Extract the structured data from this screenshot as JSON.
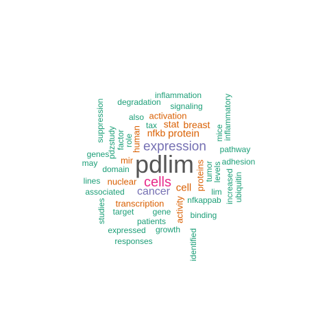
{
  "palette": {
    "teal": "#1b9e77",
    "orange": "#d95f02",
    "purple": "#7570b3",
    "magenta": "#e7298a",
    "gray": "#555555"
  },
  "words": [
    {
      "text": "pdlim",
      "color": "gray"
    },
    {
      "text": "expression",
      "color": "purple"
    },
    {
      "text": "cells",
      "color": "magenta"
    },
    {
      "text": "cancer",
      "color": "purple"
    },
    {
      "text": "protein",
      "color": "orange"
    },
    {
      "text": "cell",
      "color": "orange"
    },
    {
      "text": "nfkb",
      "color": "orange"
    },
    {
      "text": "stat",
      "color": "orange"
    },
    {
      "text": "breast",
      "color": "orange"
    },
    {
      "text": "activation",
      "color": "orange"
    },
    {
      "text": "human",
      "color": "orange"
    },
    {
      "text": "mir",
      "color": "orange"
    },
    {
      "text": "nuclear",
      "color": "orange"
    },
    {
      "text": "transcription",
      "color": "orange"
    },
    {
      "text": "activity",
      "color": "orange"
    },
    {
      "text": "proteins",
      "color": "orange"
    },
    {
      "text": "tumor",
      "color": "teal"
    },
    {
      "text": "inflammation",
      "color": "teal"
    },
    {
      "text": "degradation",
      "color": "teal"
    },
    {
      "text": "signaling",
      "color": "teal"
    },
    {
      "text": "inflammatory",
      "color": "teal"
    },
    {
      "text": "mice",
      "color": "teal"
    },
    {
      "text": "suppression",
      "color": "teal"
    },
    {
      "text": "also",
      "color": "teal"
    },
    {
      "text": "tax",
      "color": "teal"
    },
    {
      "text": "pdzstudy",
      "color": "teal"
    },
    {
      "text": "factor",
      "color": "teal"
    },
    {
      "text": "role",
      "color": "teal"
    },
    {
      "text": "genes",
      "color": "teal"
    },
    {
      "text": "may",
      "color": "teal"
    },
    {
      "text": "domain",
      "color": "teal"
    },
    {
      "text": "pathway",
      "color": "teal"
    },
    {
      "text": "adhesion",
      "color": "teal"
    },
    {
      "text": "levels",
      "color": "teal"
    },
    {
      "text": "lines",
      "color": "teal"
    },
    {
      "text": "associated",
      "color": "teal"
    },
    {
      "text": "increased",
      "color": "teal"
    },
    {
      "text": "ubiquitin",
      "color": "teal"
    },
    {
      "text": "lim",
      "color": "teal"
    },
    {
      "text": "nfkappab",
      "color": "teal"
    },
    {
      "text": "studies",
      "color": "teal"
    },
    {
      "text": "target",
      "color": "teal"
    },
    {
      "text": "gene",
      "color": "teal"
    },
    {
      "text": "binding",
      "color": "teal"
    },
    {
      "text": "patients",
      "color": "teal"
    },
    {
      "text": "expressed",
      "color": "teal"
    },
    {
      "text": "growth",
      "color": "teal"
    },
    {
      "text": "responses",
      "color": "teal"
    },
    {
      "text": "identified",
      "color": "teal"
    }
  ]
}
